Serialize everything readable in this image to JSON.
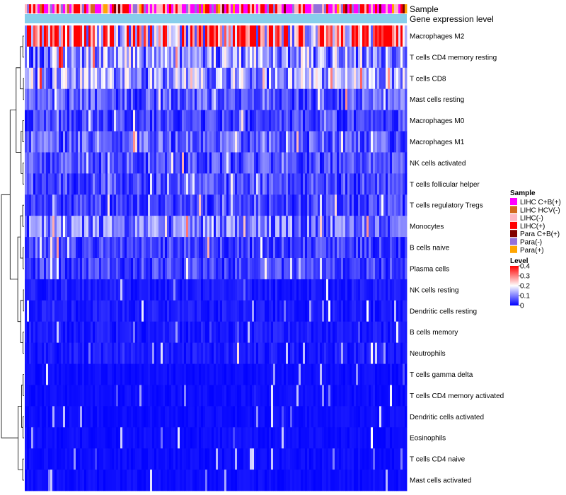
{
  "chart_data": {
    "type": "heatmap",
    "annotations": [
      "Sample",
      "Gene expression level"
    ],
    "rows": [
      {
        "name": "Macrophages M2",
        "mean": 0.3
      },
      {
        "name": "T cells CD4 memory resting",
        "mean": 0.12
      },
      {
        "name": "T cells CD8",
        "mean": 0.12
      },
      {
        "name": "Mast cells resting",
        "mean": 0.07
      },
      {
        "name": "Macrophages M0",
        "mean": 0.05
      },
      {
        "name": "Macrophages M1",
        "mean": 0.07
      },
      {
        "name": "NK cells activated",
        "mean": 0.06
      },
      {
        "name": "T cells follicular helper",
        "mean": 0.06
      },
      {
        "name": "T cells regulatory  Tregs",
        "mean": 0.05
      },
      {
        "name": "Monocytes",
        "mean": 0.09
      },
      {
        "name": "B cells naive",
        "mean": 0.05
      },
      {
        "name": "Plasma cells",
        "mean": 0.05
      },
      {
        "name": "NK cells resting",
        "mean": 0.02
      },
      {
        "name": "Dendritic cells resting",
        "mean": 0.02
      },
      {
        "name": "B cells memory",
        "mean": 0.02
      },
      {
        "name": "Neutrophils",
        "mean": 0.02
      },
      {
        "name": "T cells gamma delta",
        "mean": 0.01
      },
      {
        "name": "T cells CD4 memory activated",
        "mean": 0.01
      },
      {
        "name": "Dendritic cells activated",
        "mean": 0.01
      },
      {
        "name": "Eosinophils",
        "mean": 0.01
      },
      {
        "name": "T cells CD4 naive",
        "mean": 0.01
      },
      {
        "name": "Mast cells activated",
        "mean": 0.01
      }
    ],
    "color_scale": {
      "min": 0,
      "max": 0.4,
      "colors": [
        "#0000ff",
        "#ffffff",
        "#ff0000"
      ],
      "ticks": [
        0.4,
        0.3,
        0.2,
        0.1,
        0
      ]
    },
    "sample_legend_title": "Sample",
    "sample_groups": [
      {
        "label": "LIHC C+B(+)",
        "color": "#ff00ff"
      },
      {
        "label": "LIHC HCV(-)",
        "color": "#d2691e"
      },
      {
        "label": "LIHC(-)",
        "color": "#ffb6c1"
      },
      {
        "label": "LIHC(+)",
        "color": "#ff0000"
      },
      {
        "label": "Para C+B(+)",
        "color": "#800000"
      },
      {
        "label": "Para(-)",
        "color": "#9370db"
      },
      {
        "label": "Para(+)",
        "color": "#ffa500"
      }
    ],
    "level_legend_title": "Level",
    "expression_bar_color": "#87ceeb",
    "n_columns": 180
  }
}
